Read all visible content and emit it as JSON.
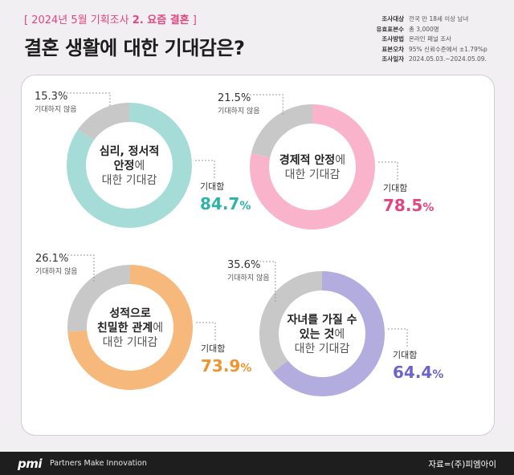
{
  "header": {
    "bracket_open": "[",
    "subtitle_prefix": "2024년 5월 기획조사 ",
    "subtitle_bold": "2. 요즘 결혼",
    "bracket_close": "]",
    "title": "결혼 생활에 대한 기대감은?"
  },
  "meta": [
    {
      "key": "조사대상",
      "value": "전국 만 18세 이상 남녀"
    },
    {
      "key": "유효표본수",
      "value": "총 3,000명"
    },
    {
      "key": "조사방법",
      "value": "온라인 패널 조사"
    },
    {
      "key": "표본오차",
      "value": "95% 신뢰수준에서 ±1.79%p"
    },
    {
      "key": "조사일자",
      "value": "2024.05.03.~2024.05.09."
    }
  ],
  "labels": {
    "expect": "기대함",
    "not_expect": "기대하지 않음"
  },
  "colors": {
    "gray": "#c8c8c8"
  },
  "chart_data": [
    {
      "type": "pie",
      "donut": true,
      "center_lines": [
        {
          "bold": "심리, 정서적",
          "normal": ""
        },
        {
          "bold": "안정",
          "normal": "에"
        },
        {
          "bold": "",
          "normal": "대한 기대감"
        }
      ],
      "values": [
        {
          "label": "기대함",
          "value": 84.7
        },
        {
          "label": "기대하지 않음",
          "value": 15.3
        }
      ],
      "color": "#a5dcd8",
      "value_color": "#2fb3a9"
    },
    {
      "type": "pie",
      "donut": true,
      "center_lines": [
        {
          "bold": "경제적 안정",
          "normal": "에"
        },
        {
          "bold": "",
          "normal": "대한 기대감"
        }
      ],
      "values": [
        {
          "label": "기대함",
          "value": 78.5
        },
        {
          "label": "기대하지 않음",
          "value": 21.5
        }
      ],
      "color": "#f9b3cb",
      "value_color": "#e2457f"
    },
    {
      "type": "pie",
      "donut": true,
      "center_lines": [
        {
          "bold": "성적으로",
          "normal": ""
        },
        {
          "bold": "친밀한 관계",
          "normal": "에"
        },
        {
          "bold": "",
          "normal": "대한 기대감"
        }
      ],
      "values": [
        {
          "label": "기대함",
          "value": 73.9
        },
        {
          "label": "기대하지 않음",
          "value": 26.1
        }
      ],
      "color": "#f6b87b",
      "value_color": "#f0952e"
    },
    {
      "type": "pie",
      "donut": true,
      "center_lines": [
        {
          "bold": "자녀를 가질 수",
          "normal": ""
        },
        {
          "bold": "있는 것",
          "normal": "에"
        },
        {
          "bold": "",
          "normal": "대한 기대감"
        }
      ],
      "values": [
        {
          "label": "기대함",
          "value": 64.4
        },
        {
          "label": "기대하지 않음",
          "value": 35.6
        }
      ],
      "color": "#b3addf",
      "value_color": "#6c64c9"
    }
  ],
  "footer": {
    "logo": "pmi",
    "tagline": "Partners Make Innovation",
    "source": "자료=(주)피엠아이"
  }
}
